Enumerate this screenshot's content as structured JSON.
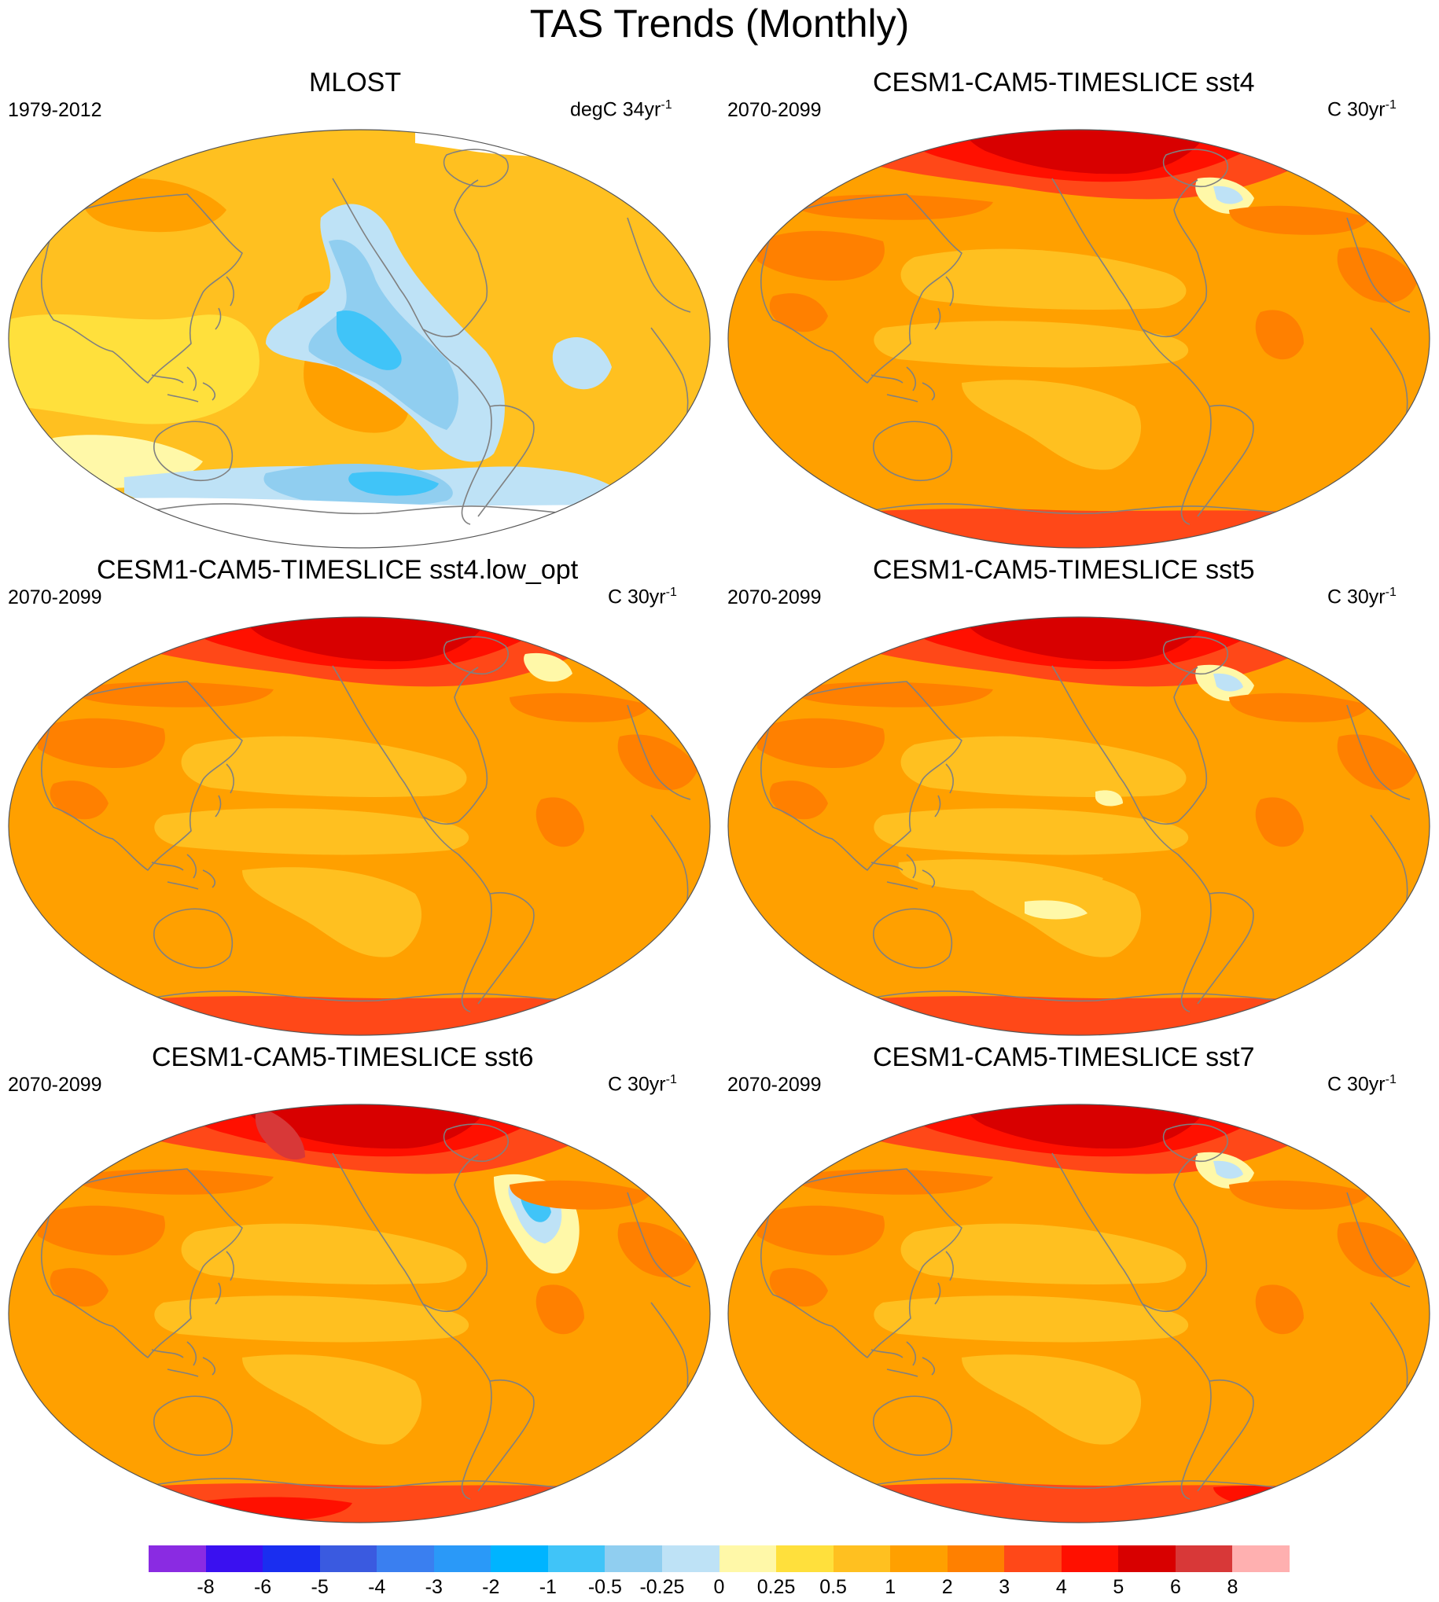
{
  "title": "TAS Trends (Monthly)",
  "panels": [
    {
      "title": "MLOST",
      "period": "1979-2012",
      "units": "degC 34yr",
      "units_sup": "-1",
      "scheme": "obs"
    },
    {
      "title": "CESM1-CAM5-TIMESLICE sst4",
      "period": "2070-2099",
      "units": "C 30yr",
      "units_sup": "-1",
      "scheme": "sst4"
    },
    {
      "title": "CESM1-CAM5-TIMESLICE sst4.low_opt",
      "period": "2070-2099",
      "units": "C 30yr",
      "units_sup": "-1",
      "scheme": "low_opt"
    },
    {
      "title": "CESM1-CAM5-TIMESLICE sst5",
      "period": "2070-2099",
      "units": "C 30yr",
      "units_sup": "-1",
      "scheme": "sst5"
    },
    {
      "title": "CESM1-CAM5-TIMESLICE sst6",
      "period": "2070-2099",
      "units": "C 30yr",
      "units_sup": "-1",
      "scheme": "sst6"
    },
    {
      "title": "CESM1-CAM5-TIMESLICE sst7",
      "period": "2070-2099",
      "units": "C 30yr",
      "units_sup": "-1",
      "scheme": "sst7"
    }
  ],
  "colorbar": {
    "labels": [
      "-8",
      "-6",
      "-5",
      "-4",
      "-3",
      "-2",
      "-1",
      "-0.5",
      "-0.25",
      "0",
      "0.25",
      "0.5",
      "1",
      "2",
      "3",
      "4",
      "5",
      "6",
      "8"
    ],
    "colors": [
      "#8a2be2",
      "#3a10f0",
      "#1a2ef0",
      "#3a5ae0",
      "#3a7ff0",
      "#2a99f8",
      "#00b4ff",
      "#40c4f8",
      "#90cef0",
      "#bee2f6",
      "#fff8a8",
      "#ffe03c",
      "#ffc020",
      "#ffa000",
      "#ff8000",
      "#ff4818",
      "#ff1000",
      "#d80000",
      "#d83838",
      "#ffb0b0"
    ]
  }
}
